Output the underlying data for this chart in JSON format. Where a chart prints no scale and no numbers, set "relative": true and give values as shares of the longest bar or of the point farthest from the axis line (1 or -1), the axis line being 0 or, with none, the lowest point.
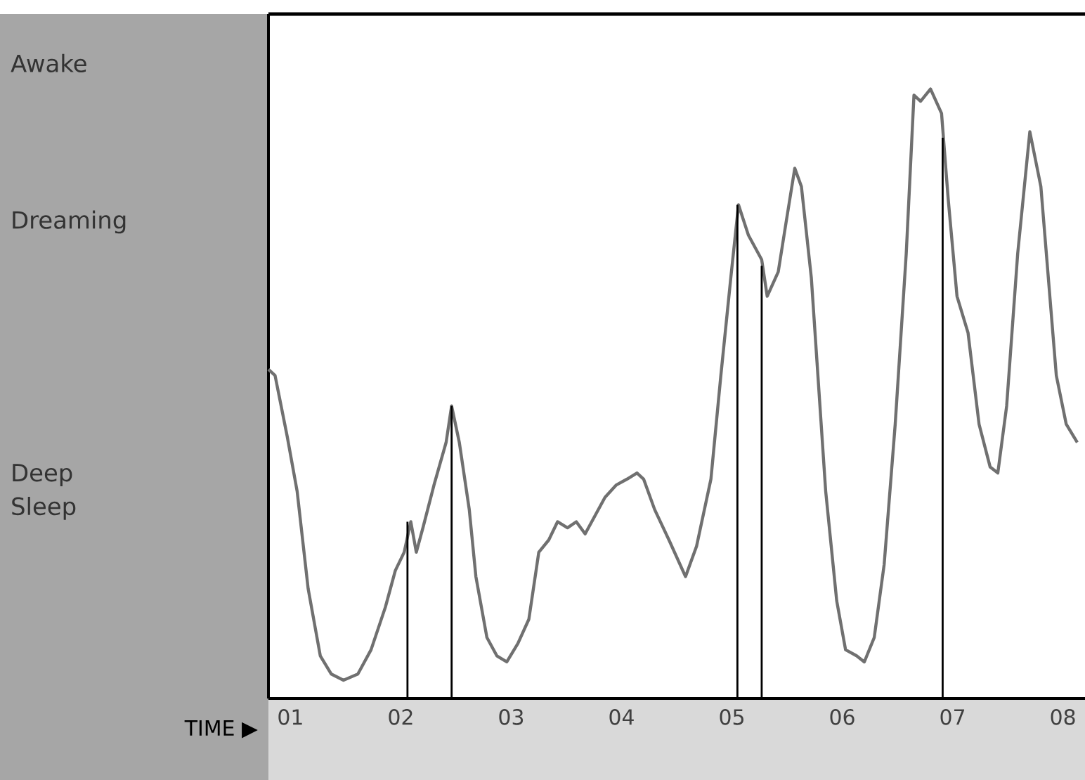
{
  "chart_data": {
    "type": "line",
    "xlabel": "TIME ▶",
    "relative": true,
    "annotations": [
      "Awake",
      "Dreaming",
      "Deep Sleep"
    ],
    "xlim": [
      0.8,
      8.2
    ],
    "xticks": [
      {
        "value": 1,
        "label": "01"
      },
      {
        "value": 2,
        "label": "02"
      },
      {
        "value": 3,
        "label": "03"
      },
      {
        "value": 4,
        "label": "04"
      },
      {
        "value": 5,
        "label": "05"
      },
      {
        "value": 6,
        "label": "06"
      },
      {
        "value": 7,
        "label": "07"
      },
      {
        "value": 8,
        "label": "08"
      }
    ],
    "series": [
      {
        "color": "#707070",
        "x": [
          0.8,
          0.86,
          0.97,
          1.06,
          1.16,
          1.27,
          1.37,
          1.48,
          1.61,
          1.73,
          1.86,
          1.95,
          2.03,
          2.09,
          2.14,
          2.2,
          2.3,
          2.41,
          2.46,
          2.53,
          2.62,
          2.68,
          2.78,
          2.87,
          2.96,
          3.06,
          3.16,
          3.25,
          3.34,
          3.42,
          3.51,
          3.59,
          3.67,
          3.76,
          3.85,
          3.95,
          4.05,
          4.14,
          4.2,
          4.3,
          4.43,
          4.58,
          4.68,
          4.81,
          4.9,
          4.99,
          5.06,
          5.15,
          5.27,
          5.32,
          5.42,
          5.49,
          5.57,
          5.63,
          5.72,
          5.85,
          5.95,
          6.03,
          6.13,
          6.2,
          6.29,
          6.38,
          6.48,
          6.58,
          6.65,
          6.71,
          6.8,
          6.9,
          6.96,
          7.04,
          7.14,
          7.24,
          7.34,
          7.41,
          7.49,
          7.59,
          7.7,
          7.8,
          7.94,
          8.03,
          8.13
        ],
        "values": [
          0.54,
          0.53,
          0.43,
          0.34,
          0.18,
          0.07,
          0.04,
          0.03,
          0.04,
          0.08,
          0.15,
          0.21,
          0.24,
          0.29,
          0.24,
          0.28,
          0.35,
          0.42,
          0.48,
          0.42,
          0.31,
          0.2,
          0.1,
          0.07,
          0.06,
          0.09,
          0.13,
          0.24,
          0.26,
          0.29,
          0.28,
          0.29,
          0.27,
          0.3,
          0.33,
          0.35,
          0.36,
          0.37,
          0.36,
          0.31,
          0.26,
          0.2,
          0.25,
          0.36,
          0.53,
          0.69,
          0.81,
          0.76,
          0.72,
          0.66,
          0.7,
          0.78,
          0.87,
          0.84,
          0.69,
          0.34,
          0.16,
          0.08,
          0.07,
          0.06,
          0.1,
          0.22,
          0.45,
          0.73,
          0.99,
          0.98,
          1,
          0.96,
          0.82,
          0.66,
          0.6,
          0.45,
          0.38,
          0.37,
          0.48,
          0.73,
          0.93,
          0.84,
          0.53,
          0.45,
          0.42
        ]
      },
      {
        "type": "bar",
        "color": "#000000",
        "x": [
          2.06,
          2.46,
          5.05,
          5.27,
          6.91
        ],
        "values": [
          0.29,
          0.48,
          0.81,
          0.71,
          0.92
        ]
      }
    ]
  }
}
